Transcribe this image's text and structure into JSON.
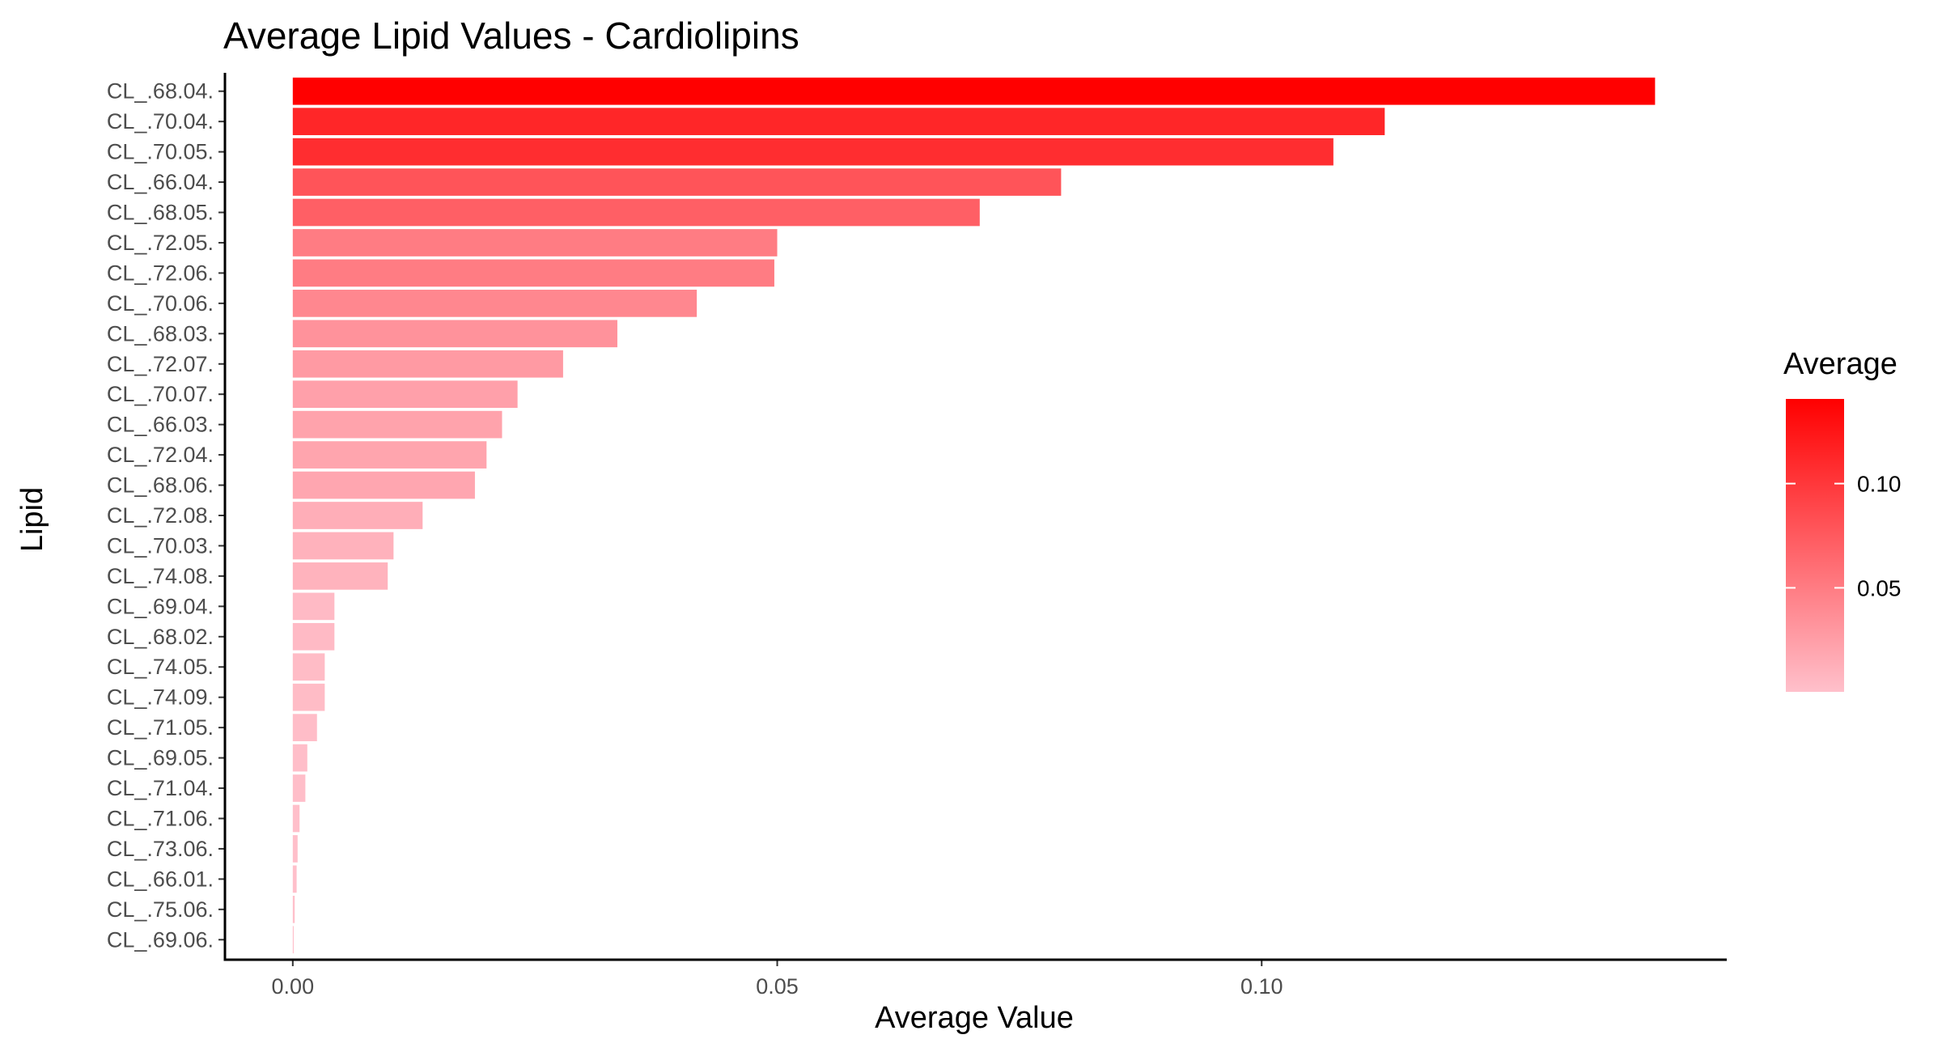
{
  "chart_data": {
    "type": "bar",
    "orientation": "horizontal",
    "title": "Average Lipid Values - Cardiolipins",
    "xlabel": "Average Value",
    "ylabel": "Lipid",
    "xlim": [
      -0.007,
      0.148
    ],
    "x_ticks": [
      {
        "value": 0.0,
        "label": "0.00"
      },
      {
        "value": 0.05,
        "label": "0.05"
      },
      {
        "value": 0.1,
        "label": "0.10"
      }
    ],
    "categories": [
      "CL_.68.04.",
      "CL_.70.04.",
      "CL_.70.05.",
      "CL_.66.04.",
      "CL_.68.05.",
      "CL_.72.05.",
      "CL_.72.06.",
      "CL_.70.06.",
      "CL_.68.03.",
      "CL_.72.07.",
      "CL_.70.07.",
      "CL_.66.03.",
      "CL_.72.04.",
      "CL_.68.06.",
      "CL_.72.08.",
      "CL_.70.03.",
      "CL_.74.08.",
      "CL_.69.04.",
      "CL_.68.02.",
      "CL_.74.05.",
      "CL_.74.09.",
      "CL_.71.05.",
      "CL_.69.05.",
      "CL_.71.04.",
      "CL_.71.06.",
      "CL_.73.06.",
      "CL_.66.01.",
      "CL_.75.06.",
      "CL_.69.06."
    ],
    "values": [
      0.1406,
      0.1127,
      0.1074,
      0.0793,
      0.0709,
      0.05,
      0.0497,
      0.0417,
      0.0335,
      0.0279,
      0.0232,
      0.0216,
      0.02,
      0.0188,
      0.0134,
      0.0104,
      0.0098,
      0.0043,
      0.0043,
      0.0033,
      0.0033,
      0.0025,
      0.0015,
      0.0013,
      0.0007,
      0.0005,
      0.0004,
      0.0002,
      0.0001
    ],
    "legend": {
      "title": "Average",
      "placement": "right",
      "low_color": "#ffc0cb",
      "high_color": "#ff0000",
      "range": [
        0.0001,
        0.1406
      ],
      "ticks": [
        {
          "value": 0.05,
          "label": "0.05"
        },
        {
          "value": 0.1,
          "label": "0.10"
        }
      ]
    },
    "grid": false
  }
}
